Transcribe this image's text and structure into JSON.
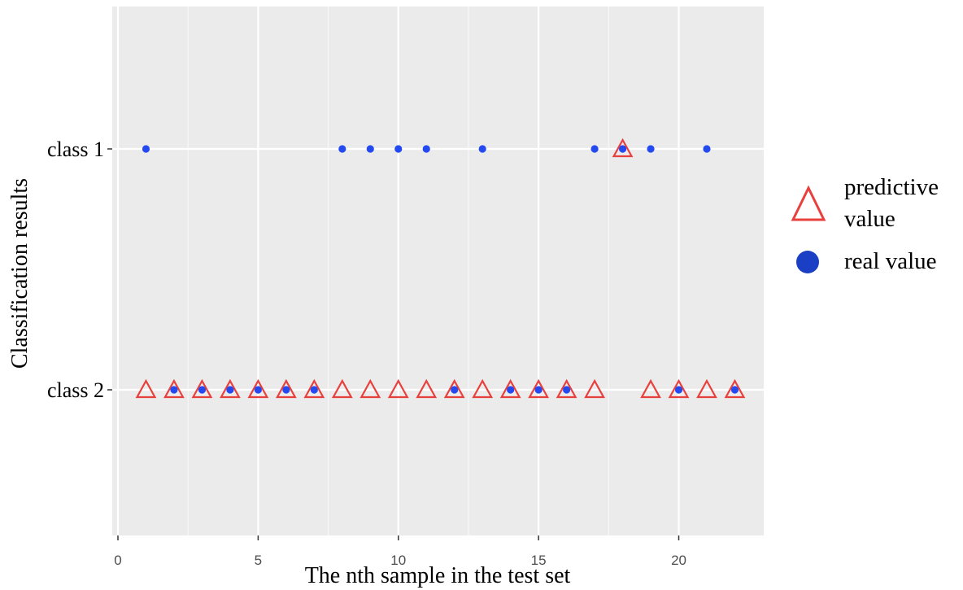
{
  "chart_data": {
    "type": "scatter",
    "xlabel": "The nth sample in the test set",
    "ylabel": "Classification results",
    "xlim": [
      0,
      23
    ],
    "xticks": [
      0,
      5,
      10,
      15,
      20
    ],
    "categories": [
      "class 1",
      "class 2"
    ],
    "grid": true,
    "legend_position": "right",
    "series": [
      {
        "name": "predictive value",
        "marker": "open-triangle",
        "color": "#e8403c",
        "points": [
          {
            "x": 1,
            "y": "class 2"
          },
          {
            "x": 2,
            "y": "class 2"
          },
          {
            "x": 3,
            "y": "class 2"
          },
          {
            "x": 4,
            "y": "class 2"
          },
          {
            "x": 5,
            "y": "class 2"
          },
          {
            "x": 6,
            "y": "class 2"
          },
          {
            "x": 7,
            "y": "class 2"
          },
          {
            "x": 8,
            "y": "class 2"
          },
          {
            "x": 9,
            "y": "class 2"
          },
          {
            "x": 10,
            "y": "class 2"
          },
          {
            "x": 11,
            "y": "class 2"
          },
          {
            "x": 12,
            "y": "class 2"
          },
          {
            "x": 13,
            "y": "class 2"
          },
          {
            "x": 14,
            "y": "class 2"
          },
          {
            "x": 15,
            "y": "class 2"
          },
          {
            "x": 16,
            "y": "class 2"
          },
          {
            "x": 17,
            "y": "class 2"
          },
          {
            "x": 18,
            "y": "class 1"
          },
          {
            "x": 19,
            "y": "class 2"
          },
          {
            "x": 20,
            "y": "class 2"
          },
          {
            "x": 21,
            "y": "class 2"
          },
          {
            "x": 22,
            "y": "class 2"
          }
        ]
      },
      {
        "name": "real value",
        "marker": "filled-circle",
        "color": "#2449f0",
        "points": [
          {
            "x": 1,
            "y": "class 1"
          },
          {
            "x": 2,
            "y": "class 2"
          },
          {
            "x": 3,
            "y": "class 2"
          },
          {
            "x": 4,
            "y": "class 2"
          },
          {
            "x": 5,
            "y": "class 2"
          },
          {
            "x": 6,
            "y": "class 2"
          },
          {
            "x": 7,
            "y": "class 2"
          },
          {
            "x": 8,
            "y": "class 1"
          },
          {
            "x": 9,
            "y": "class 1"
          },
          {
            "x": 10,
            "y": "class 1"
          },
          {
            "x": 11,
            "y": "class 1"
          },
          {
            "x": 12,
            "y": "class 2"
          },
          {
            "x": 13,
            "y": "class 1"
          },
          {
            "x": 14,
            "y": "class 2"
          },
          {
            "x": 15,
            "y": "class 2"
          },
          {
            "x": 16,
            "y": "class 2"
          },
          {
            "x": 17,
            "y": "class 1"
          },
          {
            "x": 18,
            "y": "class 1"
          },
          {
            "x": 19,
            "y": "class 1"
          },
          {
            "x": 20,
            "y": "class 2"
          },
          {
            "x": 21,
            "y": "class 1"
          },
          {
            "x": 22,
            "y": "class 2"
          }
        ]
      }
    ]
  },
  "legend": {
    "predictive_line1": "predictive",
    "predictive_line2": "value",
    "real_label": "real value",
    "real_legend_color": "#1a3fc4"
  },
  "colors": {
    "panel_bg": "#ebebeb",
    "grid_major": "#ffffff",
    "tick_text": "#4d4d4d",
    "axis_text": "#000000"
  }
}
